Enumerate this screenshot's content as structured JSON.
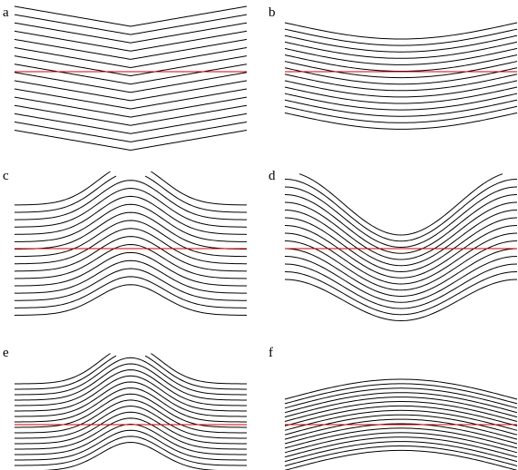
{
  "panels": [
    {
      "id": "a",
      "label": "a",
      "shape": "v-dip",
      "curve_count": 16
    },
    {
      "id": "b",
      "label": "b",
      "shape": "shallow-sag",
      "curve_count": 15
    },
    {
      "id": "c",
      "label": "c",
      "shape": "gaussian-bump",
      "curve_count": 16
    },
    {
      "id": "d",
      "label": "d",
      "shape": "wide-trough",
      "curve_count": 15
    },
    {
      "id": "e",
      "label": "e",
      "shape": "gaussian-bump",
      "curve_count": 17
    },
    {
      "id": "f",
      "label": "f",
      "shape": "arch",
      "curve_count": 17
    }
  ],
  "colors": {
    "curve": "#000000",
    "reference_line": "#cc0000",
    "background": "#ffffff"
  }
}
